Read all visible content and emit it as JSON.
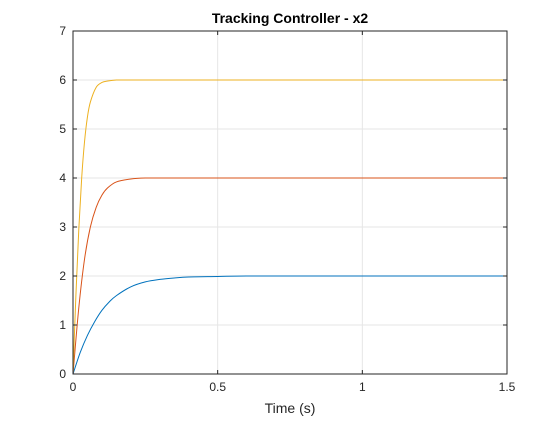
{
  "chart_data": {
    "type": "line",
    "title": "Tracking Controller - x2",
    "xlabel": "Time (s)",
    "ylabel": "",
    "xlim": [
      0,
      1.5
    ],
    "ylim": [
      0,
      7
    ],
    "xticks": [
      0,
      0.5,
      1,
      1.5
    ],
    "xtick_labels": [
      "0",
      "0.5",
      "1",
      "1.5"
    ],
    "yticks": [
      0,
      1,
      2,
      3,
      4,
      5,
      6,
      7
    ],
    "ytick_labels": [
      "0",
      "1",
      "2",
      "3",
      "4",
      "5",
      "6",
      "7"
    ],
    "grid": true,
    "legend": "none",
    "series": [
      {
        "color": "#0072BD",
        "x": [
          0,
          0.025,
          0.05,
          0.075,
          0.1,
          0.125,
          0.15,
          0.2,
          0.25,
          0.3,
          0.35,
          0.4,
          0.5,
          0.6,
          0.8,
          1.0,
          1.25,
          1.5
        ],
        "values": [
          0,
          0.44,
          0.79,
          1.07,
          1.3,
          1.47,
          1.6,
          1.78,
          1.88,
          1.93,
          1.96,
          1.98,
          1.99,
          2.0,
          2.0,
          2.0,
          2.0,
          2.0
        ]
      },
      {
        "color": "#D95319",
        "x": [
          0,
          0.02,
          0.04,
          0.06,
          0.08,
          0.1,
          0.12,
          0.15,
          0.2,
          0.25,
          0.3,
          0.4,
          0.5,
          0.75,
          1.0,
          1.25,
          1.5
        ],
        "values": [
          0,
          1.35,
          2.35,
          3.0,
          3.4,
          3.65,
          3.8,
          3.92,
          3.98,
          4.0,
          4.0,
          4.0,
          4.0,
          4.0,
          4.0,
          4.0,
          4.0
        ]
      },
      {
        "color": "#EDB120",
        "x": [
          0,
          0.01,
          0.02,
          0.03,
          0.04,
          0.05,
          0.06,
          0.08,
          0.1,
          0.12,
          0.15,
          0.2,
          0.3,
          0.5,
          0.75,
          1.0,
          1.25,
          1.5
        ],
        "values": [
          0,
          1.6,
          2.95,
          4.0,
          4.75,
          5.25,
          5.55,
          5.85,
          5.95,
          5.98,
          6.0,
          6.0,
          6.0,
          6.0,
          6.0,
          6.0,
          6.0,
          6.0
        ]
      }
    ]
  }
}
